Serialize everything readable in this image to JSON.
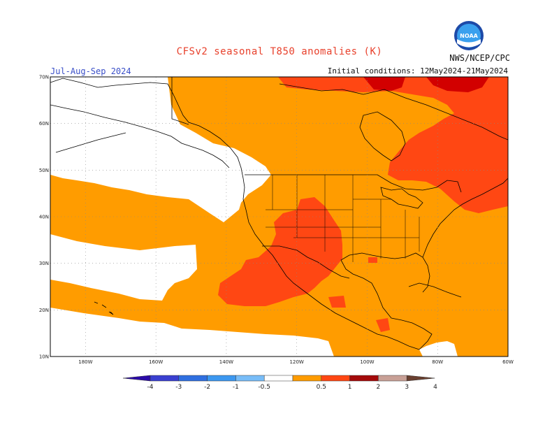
{
  "header": {
    "title": "CFSv2 seasonal T850 anomalies (K)",
    "season": "Jul-Aug-Sep 2024",
    "initial_conditions": "Initial conditions: 12May2024-21May2024",
    "agency": "NWS/NCEP/CPC",
    "logo_text": "NOAA"
  },
  "map": {
    "projection": "equirectangular",
    "lon_range": [
      -190,
      -60
    ],
    "lat_range": [
      10,
      70
    ],
    "lat_ticks": [
      {
        "value": 10,
        "label": "10N"
      },
      {
        "value": 20,
        "label": "20N"
      },
      {
        "value": 30,
        "label": "30N"
      },
      {
        "value": 40,
        "label": "40N"
      },
      {
        "value": 50,
        "label": "50N"
      },
      {
        "value": 60,
        "label": "60N"
      },
      {
        "value": 70,
        "label": "70N"
      }
    ],
    "lon_ticks": [
      {
        "value": -180,
        "label": "180W"
      },
      {
        "value": -160,
        "label": "160W"
      },
      {
        "value": -140,
        "label": "140W"
      },
      {
        "value": -120,
        "label": "120W"
      },
      {
        "value": -100,
        "label": "100W"
      },
      {
        "value": -80,
        "label": "80W"
      },
      {
        "value": -60,
        "label": "60W"
      }
    ],
    "grid": "dotted",
    "colors": {
      "background_field": "#ff9c00",
      "neutral": "#ffffff",
      "warm_1_2": "#ff4713",
      "warm_2_3": "#d20000",
      "land_lines": "#000000",
      "grid": "#888888"
    }
  },
  "colorbar": {
    "labels": [
      "-4",
      "-3",
      "-2",
      "-1",
      "-0.5",
      "0.5",
      "1",
      "2",
      "3",
      "4"
    ],
    "bins": [
      {
        "color": "#2a0aa8"
      },
      {
        "color": "#3a3fd0"
      },
      {
        "color": "#2f6fe0"
      },
      {
        "color": "#3c98f0"
      },
      {
        "color": "#78bdf8"
      },
      {
        "color": "#ffffff"
      },
      {
        "color": "#ff9c00"
      },
      {
        "color": "#ff4713"
      },
      {
        "color": "#a40a0a"
      },
      {
        "color": "#c8a096"
      },
      {
        "color": "#6a4030"
      }
    ]
  }
}
